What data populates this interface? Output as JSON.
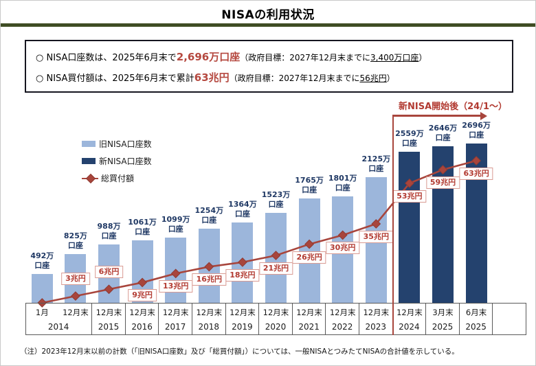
{
  "title": "NISAの利用状況",
  "summary_box": {
    "line1": {
      "prefix": "○ NISA口座数は、2025年6月末で",
      "highlight": "2,696万口座",
      "paren_prefix": "（政府目標：2027年12月末までに",
      "target": "3,400万口座",
      "paren_suffix": "）"
    },
    "line2": {
      "prefix": "○ NISA買付額は、2025年6月末で累計",
      "highlight": "63兆円",
      "paren_prefix": "（政府目標：2027年12月末までに",
      "target": "56兆円",
      "paren_suffix": "）"
    }
  },
  "legend": [
    {
      "label": "旧NISA口座数",
      "type": "bar",
      "color": "#9CB6DB"
    },
    {
      "label": "新NISA口座数",
      "type": "bar",
      "color": "#24426E"
    },
    {
      "label": "総買付額",
      "type": "line",
      "color": "#A8453C"
    }
  ],
  "annotation": {
    "text": "新NISA開始後（24/1～）"
  },
  "footnote": "（注）2023年12月末以前の計数（「旧NISA口座数」及び「総買付額」）については、一般NISAとつみたてNISAの合計値を示している。",
  "colors": {
    "old_bar": "#9CB6DB",
    "new_bar": "#24426E",
    "line": "#A8453C",
    "accent_red_text": "#B23B32",
    "bar_label_text": "#1F3864",
    "title_rule_green": "#3F4D24"
  },
  "chart_data": {
    "type": "combo-bar-line",
    "bar_unit": "万口座",
    "line_unit": "兆円",
    "value_axis": "hidden",
    "bar_series_names": [
      "旧NISA口座数",
      "新NISA口座数"
    ],
    "line_series_name": "総買付額",
    "points": [
      {
        "month": "1月",
        "year": "2014",
        "accounts": 492,
        "accounts_label": [
          "492万",
          "口座"
        ],
        "bar": "old",
        "amount": 0,
        "amount_label": "",
        "amount_label_pos": ""
      },
      {
        "month": "12月末",
        "year": "2014",
        "accounts": 825,
        "accounts_label": [
          "825万",
          "口座"
        ],
        "bar": "old",
        "amount": 3,
        "amount_label": "3兆円",
        "amount_label_pos": "above"
      },
      {
        "month": "12月末",
        "year": "2015",
        "accounts": 988,
        "accounts_label": [
          "988万",
          "口座"
        ],
        "bar": "old",
        "amount": 6,
        "amount_label": "6兆円",
        "amount_label_pos": "above"
      },
      {
        "month": "12月末",
        "year": "2016",
        "accounts": 1061,
        "accounts_label": [
          "1061万",
          "口座"
        ],
        "bar": "old",
        "amount": 9,
        "amount_label": "9兆円",
        "amount_label_pos": "below"
      },
      {
        "month": "12月末",
        "year": "2017",
        "accounts": 1099,
        "accounts_label": [
          "1099万",
          "口座"
        ],
        "bar": "old",
        "amount": 13,
        "amount_label": "13兆円",
        "amount_label_pos": "below"
      },
      {
        "month": "12月末",
        "year": "2018",
        "accounts": 1254,
        "accounts_label": [
          "1254万",
          "口座"
        ],
        "bar": "old",
        "amount": 16,
        "amount_label": "16兆円",
        "amount_label_pos": "below"
      },
      {
        "month": "12月末",
        "year": "2019",
        "accounts": 1364,
        "accounts_label": [
          "1364万",
          "口座"
        ],
        "bar": "old",
        "amount": 18,
        "amount_label": "18兆円",
        "amount_label_pos": "below"
      },
      {
        "month": "12月末",
        "year": "2020",
        "accounts": 1523,
        "accounts_label": [
          "1523万",
          "口座"
        ],
        "bar": "old",
        "amount": 21,
        "amount_label": "21兆円",
        "amount_label_pos": "below"
      },
      {
        "month": "12月末",
        "year": "2021",
        "accounts": 1765,
        "accounts_label": [
          "1765万",
          "口座"
        ],
        "bar": "old",
        "amount": 26,
        "amount_label": "26兆円",
        "amount_label_pos": "below"
      },
      {
        "month": "12月末",
        "year": "2022",
        "accounts": 1801,
        "accounts_label": [
          "1801万",
          "口座"
        ],
        "bar": "old",
        "amount": 30,
        "amount_label": "30兆円",
        "amount_label_pos": "below"
      },
      {
        "month": "12月末",
        "year": "2023",
        "accounts": 2125,
        "accounts_label": [
          "2125万",
          "口座"
        ],
        "bar": "old",
        "amount": 35,
        "amount_label": "35兆円",
        "amount_label_pos": "below"
      },
      {
        "month": "12月末",
        "year": "2024",
        "accounts": 2559,
        "accounts_label": [
          "2559万",
          "口座"
        ],
        "bar": "new",
        "amount": 53,
        "amount_label": "53兆円",
        "amount_label_pos": "below"
      },
      {
        "month": "3月末",
        "year": "2025",
        "accounts": 2646,
        "accounts_label": [
          "2646万",
          "口座"
        ],
        "bar": "new",
        "amount": 59,
        "amount_label": "59兆円",
        "amount_label_pos": "below"
      },
      {
        "month": "6月末",
        "year": "2025",
        "accounts": 2696,
        "accounts_label": [
          "2696万",
          "口座"
        ],
        "bar": "new",
        "amount": 63,
        "amount_label": "63兆円",
        "amount_label_pos": "below"
      }
    ],
    "axis_groups": [
      {
        "year": "2014",
        "months": [
          "1月",
          "12月末"
        ]
      },
      {
        "year": "2015",
        "months": [
          "12月末"
        ]
      },
      {
        "year": "2016",
        "months": [
          "12月末"
        ]
      },
      {
        "year": "2017",
        "months": [
          "12月末"
        ]
      },
      {
        "year": "2018",
        "months": [
          "12月末"
        ]
      },
      {
        "year": "2019",
        "months": [
          "12月末"
        ]
      },
      {
        "year": "2020",
        "months": [
          "12月末"
        ]
      },
      {
        "year": "2021",
        "months": [
          "12月末"
        ]
      },
      {
        "year": "2022",
        "months": [
          "12月末"
        ]
      },
      {
        "year": "2023",
        "months": [
          "12月末"
        ]
      },
      {
        "year": "2024",
        "months": [
          "12月末"
        ]
      },
      {
        "year": "2025",
        "months": [
          "3月末"
        ]
      },
      {
        "year": "2025",
        "months": [
          "6月末"
        ]
      },
      {
        "year": "",
        "months": [
          ""
        ]
      }
    ]
  }
}
